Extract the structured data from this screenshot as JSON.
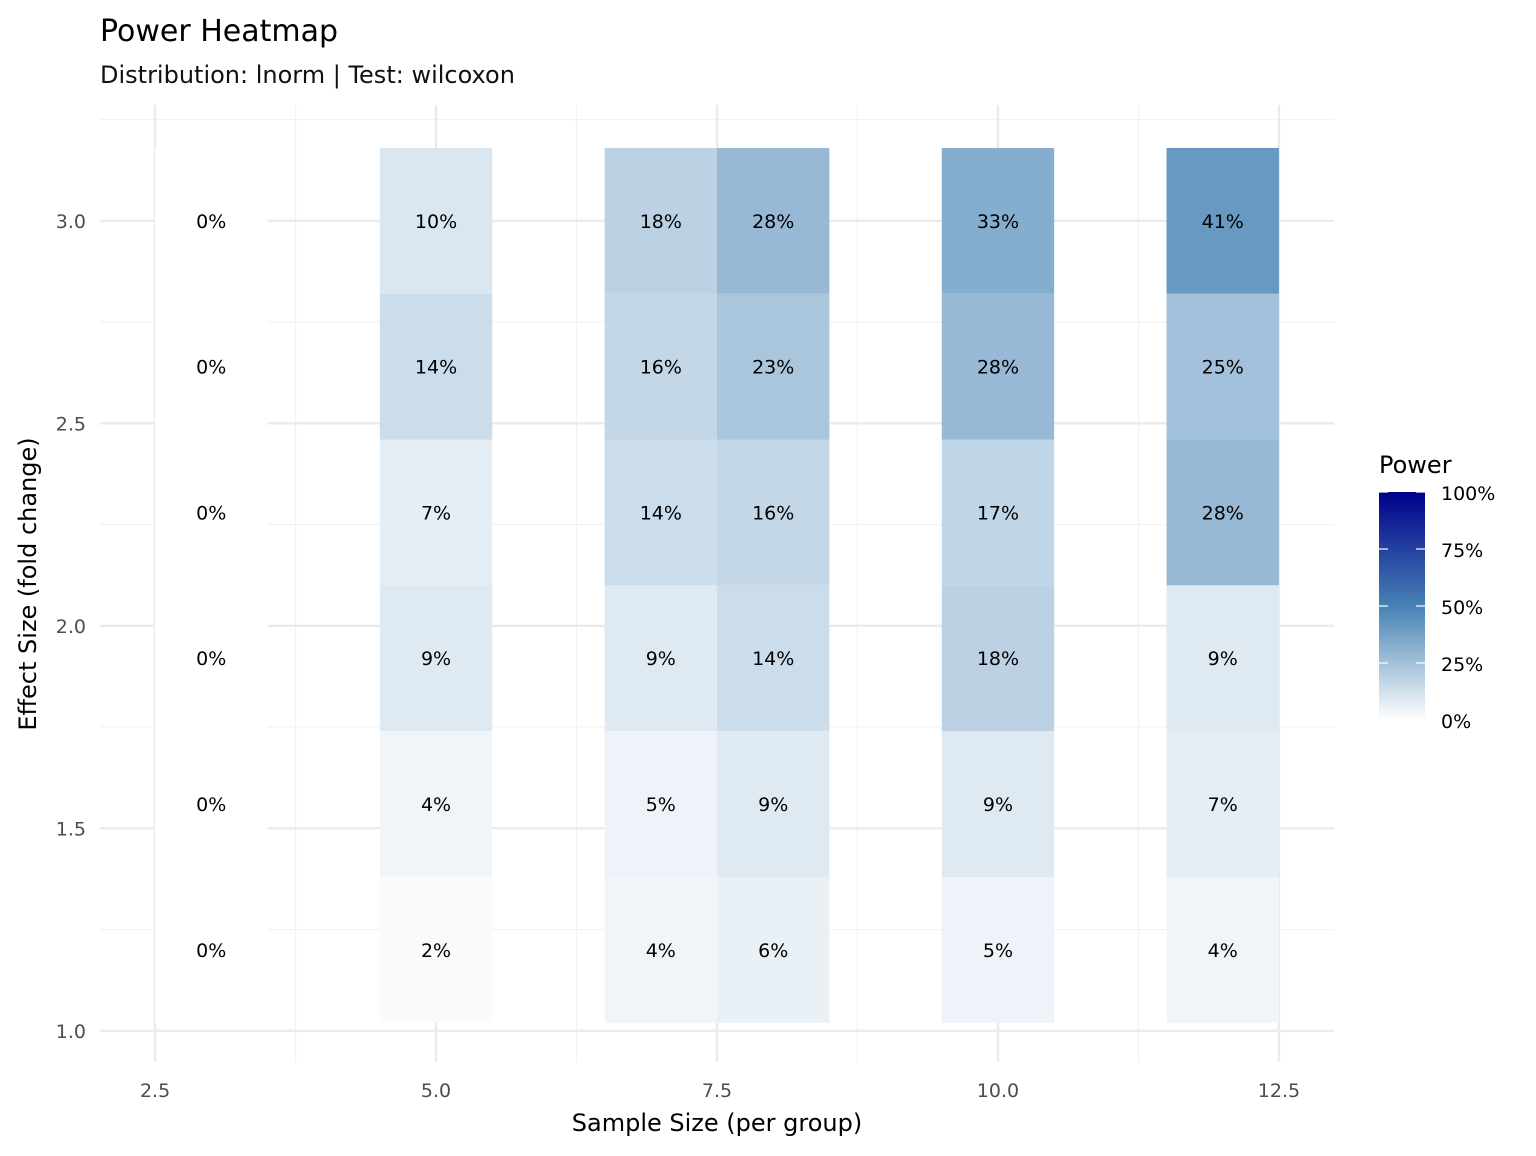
{
  "chart_data": {
    "type": "heatmap",
    "title": "Power Heatmap",
    "subtitle": "Distribution: lnorm | Test: wilcoxon",
    "xlabel": "Sample Size (per group)",
    "ylabel": "Effect Size (fold change)",
    "xlim": [
      2.01,
      12.99
    ],
    "ylim": [
      0.923,
      3.286
    ],
    "x_ticks": [
      2.5,
      5.0,
      7.5,
      10.0,
      12.5
    ],
    "x_tick_labels": [
      "2.5",
      "5.0",
      "7.5",
      "10.0",
      "12.5"
    ],
    "y_ticks": [
      1.0,
      1.5,
      2.0,
      2.5,
      3.0
    ],
    "y_tick_labels": [
      "1.0",
      "1.5",
      "2.0",
      "2.5",
      "3.0"
    ],
    "grid": true,
    "x": [
      3,
      5,
      7,
      8,
      10,
      12
    ],
    "y": [
      1.2,
      1.56,
      1.92,
      2.28,
      2.64,
      3.0
    ],
    "values": [
      [
        0,
        2,
        4,
        6,
        5,
        4
      ],
      [
        0,
        4,
        5,
        9,
        9,
        7
      ],
      [
        0,
        9,
        9,
        14,
        18,
        9
      ],
      [
        0,
        7,
        14,
        16,
        17,
        28
      ],
      [
        0,
        14,
        16,
        23,
        28,
        25
      ],
      [
        0,
        10,
        18,
        28,
        33,
        41
      ]
    ],
    "value_format": "percent",
    "legend": {
      "title": "Power",
      "position": "right",
      "ticks": [
        0,
        25,
        50,
        75,
        100
      ],
      "tick_labels": [
        "0%",
        "25%",
        "50%",
        "75%",
        "100%"
      ]
    },
    "colors": {
      "low": "#ffffff",
      "mid": "#4682b4",
      "high": "#00008b"
    }
  }
}
